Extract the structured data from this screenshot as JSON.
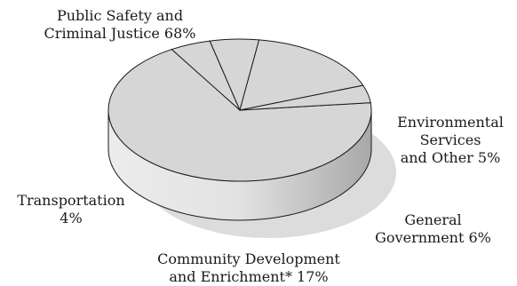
{
  "chart_data": {
    "type": "pie",
    "style": "3d",
    "slices": [
      {
        "label_lines": [
          "Public Safety and",
          "Criminal Justice  68%"
        ],
        "value": 68
      },
      {
        "label_lines": [
          "Environmental",
          "Services",
          "and Other  5%"
        ],
        "value": 5
      },
      {
        "label_lines": [
          "General",
          "Government  6%"
        ],
        "value": 6
      },
      {
        "label_lines": [
          "Community Development",
          "and Enrichment*  17%"
        ],
        "value": 17
      },
      {
        "label_lines": [
          "Transportation",
          "4%"
        ],
        "value": 4
      }
    ],
    "colors": {
      "top": "#d6d6d6",
      "side": "#e6e6e6",
      "side_dark": "#a9a9a9",
      "shadow": "#dcdcdc",
      "line": "#1a1a1a"
    }
  }
}
